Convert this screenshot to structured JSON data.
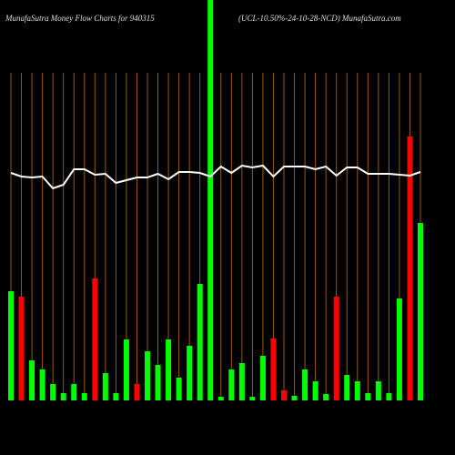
{
  "chart_data": {
    "type": "bar",
    "title": "MunafaSutra  Money Flow  Charts for 940315",
    "subtitle": "(UCL-10.50%-24-10-28-NCD) MunafaSutra.com",
    "ylim": [
      0,
      440
    ],
    "grid": true,
    "grid_color": "#9a5a10",
    "values": [
      120,
      114,
      44,
      34,
      18,
      8,
      18,
      8,
      134,
      30,
      8,
      67,
      18,
      54,
      39,
      67,
      25,
      60,
      128,
      440,
      4,
      34,
      41,
      4,
      49,
      68,
      11,
      5,
      34,
      21,
      7,
      114,
      28,
      21,
      8,
      21,
      8,
      112,
      290,
      195
    ],
    "colors": [
      "#00ff00",
      "#ff0000",
      "#00ff00",
      "#00ff00",
      "#00ff00",
      "#00ff00",
      "#00ff00",
      "#00ff00",
      "#ff0000",
      "#00ff00",
      "#00ff00",
      "#00ff00",
      "#ff0000",
      "#00ff00",
      "#00ff00",
      "#00ff00",
      "#00ff00",
      "#00ff00",
      "#00ff00",
      "#00ff00",
      "#00ff00",
      "#00ff00",
      "#00ff00",
      "#00ff00",
      "#00ff00",
      "#ff0000",
      "#ff0000",
      "#00ff00",
      "#00ff00",
      "#00ff00",
      "#00ff00",
      "#ff0000",
      "#00ff00",
      "#00ff00",
      "#00ff00",
      "#00ff00",
      "#00ff00",
      "#00ff00",
      "#ff0000",
      "#00ff00"
    ],
    "line": {
      "color": "#ffffff",
      "values": [
        250,
        246,
        245,
        246,
        233,
        237,
        254,
        254,
        248,
        249,
        239,
        242,
        245,
        245,
        249,
        243,
        251,
        251,
        250,
        246,
        257,
        250,
        258,
        256,
        258,
        246,
        257,
        257,
        257,
        254,
        257,
        247,
        256,
        256,
        249,
        249,
        249,
        248,
        247,
        251
      ]
    }
  }
}
